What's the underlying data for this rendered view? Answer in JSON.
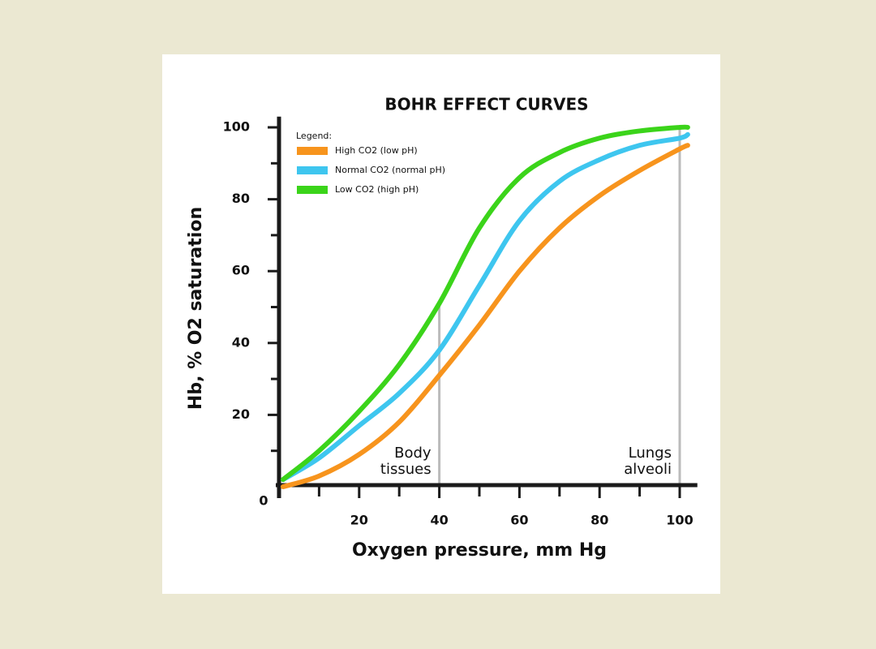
{
  "chart_data": {
    "type": "line",
    "title": "BOHR EFFECT CURVES",
    "x_label": "Oxygen pressure, mm Hg",
    "y_label": "Hb, % O2 saturation",
    "x": [
      1,
      10,
      20,
      30,
      40,
      50,
      60,
      70,
      80,
      90,
      100,
      102
    ],
    "series": [
      {
        "name": "High CO2 (low pH)",
        "color": "#f7941d",
        "values": [
          0,
          3,
          9,
          18,
          31,
          45,
          60,
          72,
          81,
          88,
          94,
          95
        ]
      },
      {
        "name": "Normal CO2 (normal pH)",
        "color": "#3ec6ef",
        "values": [
          2,
          8,
          17,
          26,
          38,
          56,
          74,
          85,
          91,
          95,
          97,
          98
        ]
      },
      {
        "name": "Low CO2 (high pH)",
        "color": "#3bd41a",
        "values": [
          2,
          10,
          21,
          34,
          51,
          72,
          86,
          93,
          97,
          99,
          100,
          100
        ]
      }
    ],
    "legend_title": "Legend:",
    "xlim": [
      0,
      104
    ],
    "ylim": [
      0,
      103
    ],
    "xticks": [
      20,
      40,
      60,
      80,
      100
    ],
    "yticks": [
      0,
      20,
      40,
      60,
      80,
      100
    ],
    "x_minor_ticks": [
      10,
      30,
      50,
      70,
      90
    ],
    "y_minor_ticks": [
      10,
      30,
      50,
      70,
      90
    ],
    "vlines": [
      40,
      100
    ],
    "annotations": [
      {
        "x": 40,
        "lines": [
          "Body",
          "tissues"
        ]
      },
      {
        "x": 100,
        "lines": [
          "Lungs",
          "alveoli"
        ]
      }
    ]
  }
}
